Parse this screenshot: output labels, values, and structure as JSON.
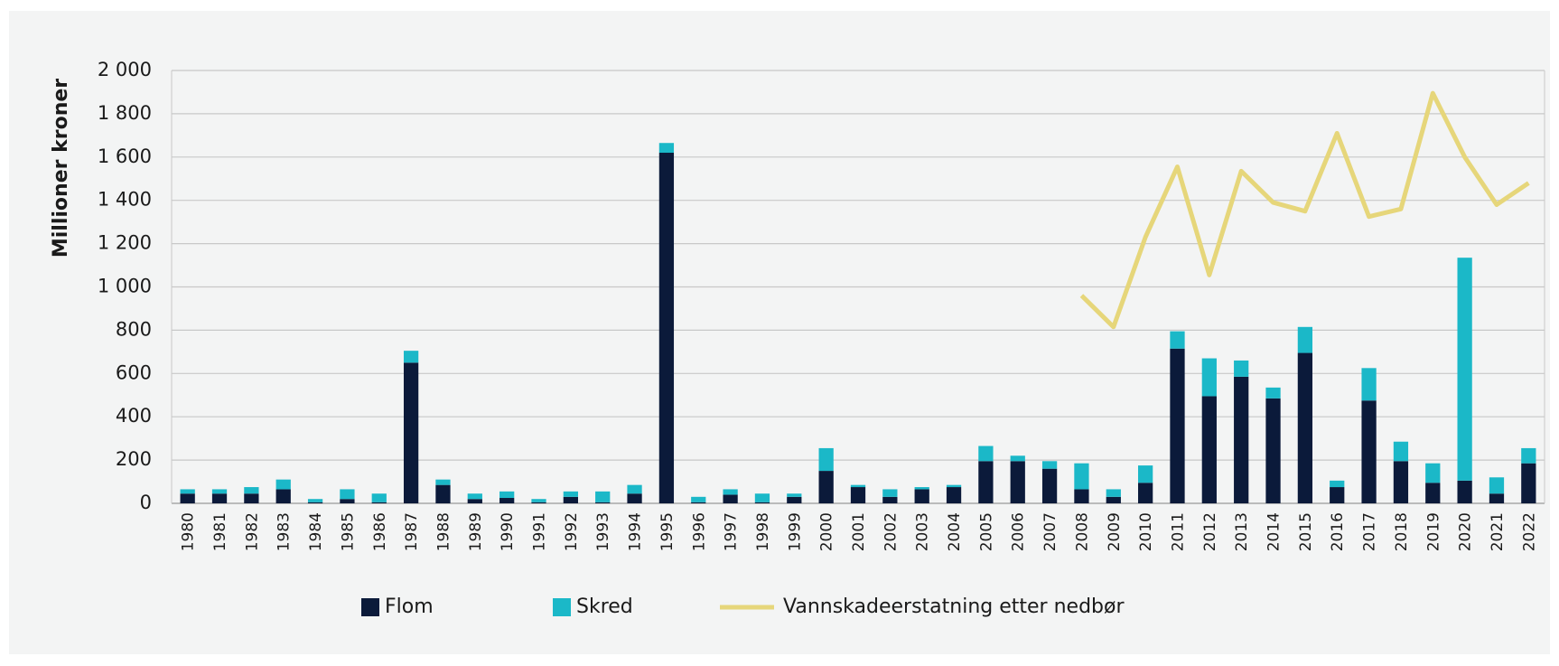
{
  "chart_data": {
    "type": "bar",
    "y_label": "Millioner kroner",
    "categories": [
      "1980",
      "1981",
      "1982",
      "1983",
      "1984",
      "1985",
      "1986",
      "1987",
      "1988",
      "1989",
      "1990",
      "1991",
      "1992",
      "1993",
      "1994",
      "1995",
      "1996",
      "1997",
      "1998",
      "1999",
      "2000",
      "2001",
      "2002",
      "2003",
      "2004",
      "2005",
      "2006",
      "2007",
      "2008",
      "2009",
      "2010",
      "2011",
      "2012",
      "2013",
      "2014",
      "2015",
      "2016",
      "2017",
      "2018",
      "2019",
      "2020",
      "2021",
      "2022"
    ],
    "series": [
      {
        "name": "Flom",
        "color": "#0b1a3a",
        "values": [
          45,
          45,
          45,
          65,
          5,
          20,
          5,
          650,
          85,
          20,
          25,
          5,
          30,
          5,
          45,
          1620,
          5,
          40,
          5,
          30,
          150,
          75,
          30,
          65,
          75,
          195,
          195,
          160,
          65,
          30,
          95,
          715,
          495,
          585,
          485,
          695,
          75,
          475,
          195,
          95,
          105,
          45,
          185
        ]
      },
      {
        "name": "Skred",
        "color": "#1bb8c8",
        "values": [
          20,
          20,
          30,
          45,
          15,
          45,
          40,
          55,
          25,
          25,
          30,
          15,
          25,
          50,
          40,
          45,
          25,
          25,
          40,
          15,
          105,
          10,
          35,
          10,
          10,
          70,
          25,
          35,
          120,
          35,
          80,
          80,
          175,
          75,
          50,
          120,
          30,
          150,
          90,
          90,
          1030,
          75,
          70
        ]
      },
      {
        "name": "Vannskadeerstatning etter nedbør",
        "type": "line",
        "color": "#e6d67a",
        "values": [
          null,
          null,
          null,
          null,
          null,
          null,
          null,
          null,
          null,
          null,
          null,
          null,
          null,
          null,
          null,
          null,
          null,
          null,
          null,
          null,
          null,
          null,
          null,
          null,
          null,
          null,
          null,
          null,
          960,
          815,
          1230,
          1555,
          1055,
          1535,
          1390,
          1350,
          1710,
          1325,
          1360,
          1895,
          1600,
          1380,
          1480
        ]
      }
    ],
    "stacked": true,
    "ylim": [
      0,
      2000
    ],
    "yticks": [
      0,
      200,
      400,
      600,
      800,
      {
        "value": 1000,
        "label": "1 000"
      },
      {
        "value": 1200,
        "label": "1 200"
      },
      {
        "value": 1400,
        "label": "1 400"
      },
      {
        "value": 1600,
        "label": "1 600"
      },
      {
        "value": 1800,
        "label": "1 800"
      },
      {
        "value": 2000,
        "label": "2 000"
      }
    ],
    "grid": true,
    "legend": "bottom"
  }
}
